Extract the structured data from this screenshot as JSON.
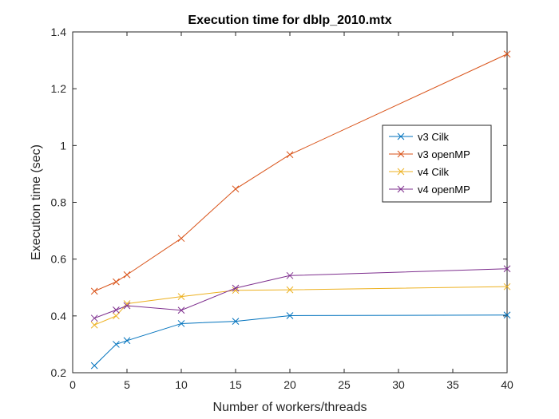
{
  "chart_data": {
    "type": "line",
    "title": "Execution time for dblp_2010.mtx",
    "xlabel": "Number of workers/threads",
    "ylabel": "Execution time (sec)",
    "xlim": [
      0,
      40
    ],
    "ylim": [
      0.2,
      1.4
    ],
    "xticks": [
      0,
      5,
      10,
      15,
      20,
      25,
      30,
      35,
      40
    ],
    "yticks": [
      0.2,
      0.4,
      0.6,
      0.8,
      1.0,
      1.2,
      1.4
    ],
    "xtick_labels": [
      "0",
      "5",
      "10",
      "15",
      "20",
      "25",
      "30",
      "35",
      "40"
    ],
    "ytick_labels": [
      "0.2",
      "0.4",
      "0.6",
      "0.8",
      "1",
      "1.2",
      "1.4"
    ],
    "grid": false,
    "legend_position": "right",
    "marker": "x",
    "series": [
      {
        "name": "v3 Cilk",
        "color": "#0072BD",
        "x": [
          2,
          4,
          5,
          10,
          15,
          20,
          40
        ],
        "y": [
          0.225,
          0.3,
          0.313,
          0.373,
          0.381,
          0.401,
          0.403
        ]
      },
      {
        "name": "v3 openMP",
        "color": "#D95319",
        "x": [
          2,
          4,
          5,
          10,
          15,
          20,
          40
        ],
        "y": [
          0.487,
          0.52,
          0.545,
          0.673,
          0.847,
          0.968,
          1.322
        ]
      },
      {
        "name": "v4 Cilk",
        "color": "#EDB120",
        "x": [
          2,
          4,
          5,
          10,
          15,
          20,
          40
        ],
        "y": [
          0.368,
          0.4,
          0.443,
          0.468,
          0.49,
          0.492,
          0.503
        ]
      },
      {
        "name": "v4 openMP",
        "color": "#7E2F8E",
        "x": [
          2,
          4,
          5,
          10,
          15,
          20,
          40
        ],
        "y": [
          0.392,
          0.421,
          0.436,
          0.42,
          0.498,
          0.542,
          0.566
        ]
      }
    ]
  }
}
